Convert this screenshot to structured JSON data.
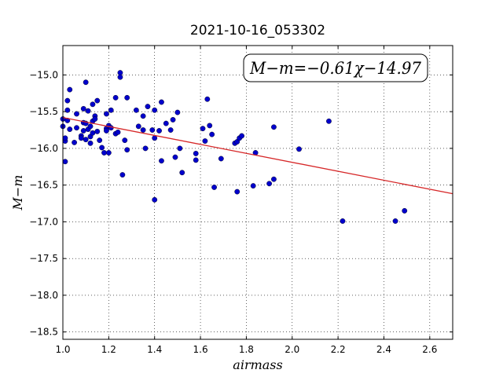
{
  "chart_data": {
    "type": "scatter",
    "title": "2021-10-16_053302",
    "xlabel": "airmass",
    "ylabel": "M−m",
    "xlim": [
      1.0,
      2.7
    ],
    "ylim": [
      -18.6,
      -14.6
    ],
    "y_inverted": true,
    "grid": true,
    "xticks": [
      1.0,
      1.2,
      1.4,
      1.6,
      1.8,
      2.0,
      2.2,
      2.4,
      2.6
    ],
    "xtick_labels": [
      "1.0",
      "1.2",
      "1.4",
      "1.6",
      "1.8",
      "2.0",
      "2.2",
      "2.4",
      "2.6"
    ],
    "yticks": [
      -15.0,
      -15.5,
      -16.0,
      -16.5,
      -17.0,
      -17.5,
      -18.0,
      -18.5
    ],
    "ytick_labels": [
      "−15.0",
      "−15.5",
      "−16.0",
      "−16.5",
      "−17.0",
      "−17.5",
      "−18.0",
      "−18.5"
    ],
    "annotation": "M−m=−0.61χ−14.97",
    "fit": {
      "slope": -0.61,
      "intercept": -14.97,
      "color": "#d62728"
    },
    "point_color": "#0000cc",
    "points": [
      [
        1.0,
        -15.7
      ],
      [
        1.0,
        -15.6
      ],
      [
        1.01,
        -15.9
      ],
      [
        1.01,
        -15.86
      ],
      [
        1.01,
        -16.18
      ],
      [
        1.02,
        -15.62
      ],
      [
        1.02,
        -15.48
      ],
      [
        1.02,
        -15.35
      ],
      [
        1.03,
        -15.74
      ],
      [
        1.03,
        -15.2
      ],
      [
        1.05,
        -15.92
      ],
      [
        1.06,
        -15.72
      ],
      [
        1.06,
        -15.53
      ],
      [
        1.08,
        -15.83
      ],
      [
        1.08,
        -15.86
      ],
      [
        1.09,
        -15.65
      ],
      [
        1.09,
        -15.46
      ],
      [
        1.09,
        -15.76
      ],
      [
        1.1,
        -15.1
      ],
      [
        1.1,
        -15.88
      ],
      [
        1.1,
        -15.66
      ],
      [
        1.11,
        -15.74
      ],
      [
        1.11,
        -15.49
      ],
      [
        1.12,
        -15.84
      ],
      [
        1.12,
        -15.93
      ],
      [
        1.12,
        -15.7
      ],
      [
        1.13,
        -15.79
      ],
      [
        1.13,
        -15.63
      ],
      [
        1.13,
        -15.4
      ],
      [
        1.14,
        -15.56
      ],
      [
        1.14,
        -15.6
      ],
      [
        1.15,
        -15.77
      ],
      [
        1.15,
        -15.35
      ],
      [
        1.16,
        -15.89
      ],
      [
        1.17,
        -15.99
      ],
      [
        1.18,
        -16.06
      ],
      [
        1.19,
        -15.73
      ],
      [
        1.19,
        -15.76
      ],
      [
        1.19,
        -15.53
      ],
      [
        1.2,
        -16.06
      ],
      [
        1.2,
        -15.69
      ],
      [
        1.21,
        -15.48
      ],
      [
        1.21,
        -15.72
      ],
      [
        1.23,
        -15.8
      ],
      [
        1.23,
        -15.31
      ],
      [
        1.24,
        -15.78
      ],
      [
        1.25,
        -14.97
      ],
      [
        1.25,
        -15.03
      ],
      [
        1.26,
        -16.36
      ],
      [
        1.27,
        -15.89
      ],
      [
        1.28,
        -15.31
      ],
      [
        1.28,
        -16.02
      ],
      [
        1.32,
        -15.48
      ],
      [
        1.33,
        -15.7
      ],
      [
        1.35,
        -15.56
      ],
      [
        1.35,
        -15.75
      ],
      [
        1.36,
        -16.0
      ],
      [
        1.37,
        -15.43
      ],
      [
        1.39,
        -15.75
      ],
      [
        1.4,
        -15.86
      ],
      [
        1.4,
        -16.7
      ],
      [
        1.4,
        -15.48
      ],
      [
        1.42,
        -15.76
      ],
      [
        1.43,
        -15.37
      ],
      [
        1.43,
        -16.17
      ],
      [
        1.45,
        -15.66
      ],
      [
        1.47,
        -15.75
      ],
      [
        1.48,
        -15.61
      ],
      [
        1.49,
        -16.12
      ],
      [
        1.5,
        -15.51
      ],
      [
        1.51,
        -16.0
      ],
      [
        1.52,
        -16.33
      ],
      [
        1.58,
        -16.07
      ],
      [
        1.58,
        -16.16
      ],
      [
        1.61,
        -15.73
      ],
      [
        1.62,
        -15.9
      ],
      [
        1.63,
        -15.33
      ],
      [
        1.64,
        -15.69
      ],
      [
        1.65,
        -15.81
      ],
      [
        1.66,
        -16.53
      ],
      [
        1.69,
        -16.14
      ],
      [
        1.75,
        -15.93
      ],
      [
        1.76,
        -16.59
      ],
      [
        1.76,
        -15.91
      ],
      [
        1.77,
        -15.86
      ],
      [
        1.78,
        -15.83
      ],
      [
        1.83,
        -16.51
      ],
      [
        1.84,
        -16.06
      ],
      [
        1.9,
        -16.48
      ],
      [
        1.92,
        -15.71
      ],
      [
        1.92,
        -16.42
      ],
      [
        2.03,
        -16.01
      ],
      [
        2.16,
        -15.63
      ],
      [
        2.22,
        -16.99
      ],
      [
        2.45,
        -16.99
      ],
      [
        2.49,
        -16.85
      ]
    ]
  }
}
